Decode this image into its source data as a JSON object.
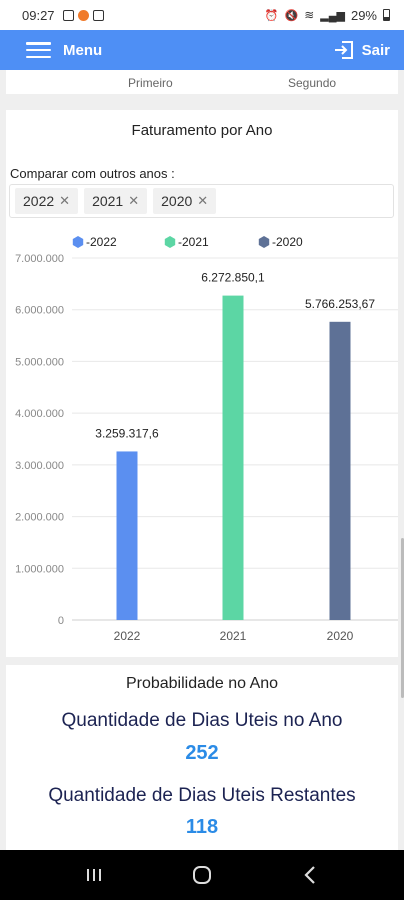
{
  "status_bar": {
    "time": "09:27",
    "battery": "29%"
  },
  "header": {
    "menu_label": "Menu",
    "exit_label": "Sair"
  },
  "top_card": {
    "label_left": "Primeiro",
    "label_right": "Segundo"
  },
  "chart_card": {
    "title": "Faturamento por Ano",
    "compare_label": "Comparar com outros anos :",
    "tags": [
      "2022",
      "2021",
      "2020"
    ]
  },
  "chart_data": {
    "type": "bar",
    "categories": [
      "2022",
      "2021",
      "2020"
    ],
    "values": [
      3259317.6,
      6272850.1,
      5766253.67
    ],
    "data_labels": [
      "3.259.317,6",
      "6.272.850,1",
      "5.766.253,67"
    ],
    "legend": [
      "-2022",
      "-2021",
      "-2020"
    ],
    "legend_placement": "top",
    "colors": [
      "#5b8ff0",
      "#5cd6a4",
      "#5e7196"
    ],
    "y_ticks": [
      "0",
      "1.000.000",
      "2.000.000",
      "3.000.000",
      "4.000.000",
      "5.000.000",
      "6.000.000",
      "7.000.000"
    ],
    "ylim": [
      0,
      7000000
    ],
    "grid": true,
    "title": "",
    "xlabel": "",
    "ylabel": ""
  },
  "probability_card": {
    "title": "Probabilidade no Ano",
    "workdays_label": "Quantidade de Dias Uteis no Ano",
    "workdays_value": "252",
    "remaining_label": "Quantidade de Dias Uteis Restantes",
    "remaining_value": "118"
  }
}
